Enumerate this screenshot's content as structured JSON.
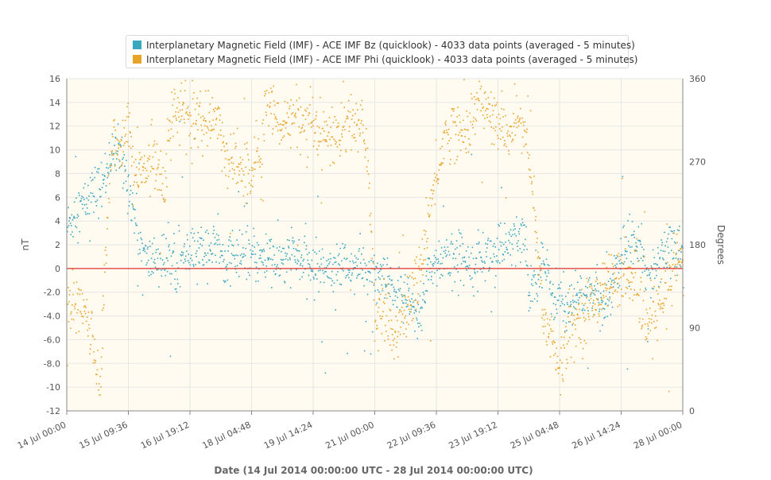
{
  "chart_data": {
    "type": "scatter",
    "title": "",
    "xlabel": "Date (14 Jul 2014 00:00:00 UTC - 28 Jul 2014 00:00:00 UTC)",
    "ylabel_left": "nT",
    "ylabel_right": "Degrees",
    "x_range": [
      "14 Jul 00:00",
      "28 Jul 00:00"
    ],
    "x_ticks": [
      "14 Jul 00:00",
      "15 Jul 09:36",
      "16 Jul 19:12",
      "18 Jul 04:48",
      "19 Jul 14:24",
      "21 Jul 00:00",
      "22 Jul 09:36",
      "23 Jul 19:12",
      "25 Jul 04:48",
      "26 Jul 14:24",
      "28 Jul 00:00"
    ],
    "y_left_range": [
      -12,
      16
    ],
    "y_left_ticks": [
      "16",
      "14",
      "12",
      "10",
      "8",
      "6",
      "4",
      "2",
      "0",
      "-2.0",
      "-4.0",
      "-6.0",
      "-8.0",
      "-10",
      "-12"
    ],
    "y_right_range": [
      0,
      360
    ],
    "y_right_ticks": [
      "360",
      "270",
      "180",
      "90",
      "0"
    ],
    "grid": true,
    "legend_position": "top-center",
    "reference_line": {
      "axis": "left",
      "value": 0,
      "color": "#e03131"
    },
    "series": [
      {
        "name": "Interplanetary Magnetic Field (IMF) - ACE IMF Bz (quicklook) - 4033 data points (averaged - 5 minutes)",
        "color": "#3aa7c0",
        "axis": "left",
        "anchors_days_value": [
          [
            0.0,
            3.5
          ],
          [
            0.2,
            5.0
          ],
          [
            0.4,
            5.5
          ],
          [
            0.6,
            6.5
          ],
          [
            0.8,
            7.0
          ],
          [
            1.0,
            10.0
          ],
          [
            1.2,
            9.5
          ],
          [
            1.4,
            7.0
          ],
          [
            1.6,
            3.0
          ],
          [
            1.8,
            0.5
          ],
          [
            2.0,
            1.0
          ],
          [
            2.4,
            0.5
          ],
          [
            2.8,
            1.0
          ],
          [
            3.2,
            2.0
          ],
          [
            3.6,
            1.0
          ],
          [
            4.0,
            1.0
          ],
          [
            4.4,
            1.0
          ],
          [
            4.8,
            0.5
          ],
          [
            5.2,
            1.0
          ],
          [
            5.6,
            0.0
          ],
          [
            6.0,
            0.5
          ],
          [
            6.4,
            0.2
          ],
          [
            6.8,
            0.0
          ],
          [
            7.0,
            -1.0
          ],
          [
            7.2,
            -1.0
          ],
          [
            7.5,
            -2.0
          ],
          [
            7.8,
            -3.0
          ],
          [
            8.0,
            -4.5
          ],
          [
            8.2,
            0.0
          ],
          [
            8.6,
            1.0
          ],
          [
            9.0,
            1.0
          ],
          [
            9.4,
            1.0
          ],
          [
            9.8,
            1.5
          ],
          [
            10.1,
            2.0
          ],
          [
            10.4,
            3.0
          ],
          [
            10.5,
            -2.0
          ],
          [
            10.8,
            1.0
          ],
          [
            11.0,
            -2.0
          ],
          [
            11.4,
            -3.0
          ],
          [
            11.8,
            -2.0
          ],
          [
            12.2,
            -3.0
          ],
          [
            12.6,
            1.0
          ],
          [
            13.0,
            3.0
          ],
          [
            13.2,
            -1.0
          ],
          [
            13.6,
            2.0
          ],
          [
            14.0,
            1.5
          ]
        ],
        "point_count": 4033
      },
      {
        "name": "Interplanetary Magnetic Field (IMF) - ACE IMF Phi (quicklook) - 4033 data points (averaged - 5 minutes)",
        "color": "#e8a426",
        "axis": "right",
        "anchors_days_value": [
          [
            0.0,
            110
          ],
          [
            0.3,
            115
          ],
          [
            0.5,
            100
          ],
          [
            0.7,
            40
          ],
          [
            0.75,
            20
          ],
          [
            0.85,
            150
          ],
          [
            1.0,
            290
          ],
          [
            1.2,
            280
          ],
          [
            1.4,
            320
          ],
          [
            1.5,
            250
          ],
          [
            1.7,
            260
          ],
          [
            2.0,
            280
          ],
          [
            2.2,
            240
          ],
          [
            2.3,
            310
          ],
          [
            2.6,
            330
          ],
          [
            2.8,
            310
          ],
          [
            3.0,
            320
          ],
          [
            3.2,
            300
          ],
          [
            3.4,
            320
          ],
          [
            3.6,
            280
          ],
          [
            3.8,
            270
          ],
          [
            4.0,
            260
          ],
          [
            4.2,
            250
          ],
          [
            4.3,
            300
          ],
          [
            4.4,
            250
          ],
          [
            4.5,
            350
          ],
          [
            4.7,
            320
          ],
          [
            5.0,
            310
          ],
          [
            5.2,
            320
          ],
          [
            5.4,
            300
          ],
          [
            5.6,
            310
          ],
          [
            5.8,
            290
          ],
          [
            6.0,
            300
          ],
          [
            6.2,
            300
          ],
          [
            6.4,
            320
          ],
          [
            6.6,
            310
          ],
          [
            6.8,
            300
          ],
          [
            7.0,
            100
          ],
          [
            7.2,
            120
          ],
          [
            7.4,
            80
          ],
          [
            7.6,
            100
          ],
          [
            7.8,
            120
          ],
          [
            8.0,
            150
          ],
          [
            8.2,
            210
          ],
          [
            8.4,
            260
          ],
          [
            8.6,
            300
          ],
          [
            8.8,
            310
          ],
          [
            9.0,
            300
          ],
          [
            9.2,
            320
          ],
          [
            9.4,
            340
          ],
          [
            9.6,
            320
          ],
          [
            9.8,
            310
          ],
          [
            10.0,
            300
          ],
          [
            10.2,
            320
          ],
          [
            10.4,
            300
          ],
          [
            10.6,
            230
          ],
          [
            10.8,
            110
          ],
          [
            11.0,
            80
          ],
          [
            11.2,
            40
          ],
          [
            11.4,
            90
          ],
          [
            11.6,
            100
          ],
          [
            11.8,
            110
          ],
          [
            12.0,
            120
          ],
          [
            12.2,
            140
          ],
          [
            12.4,
            140
          ],
          [
            12.6,
            150
          ],
          [
            12.8,
            140
          ],
          [
            13.0,
            120
          ],
          [
            13.2,
            90
          ],
          [
            13.4,
            110
          ],
          [
            13.6,
            120
          ],
          [
            13.8,
            170
          ],
          [
            14.0,
            160
          ]
        ],
        "point_count": 4033
      }
    ]
  }
}
